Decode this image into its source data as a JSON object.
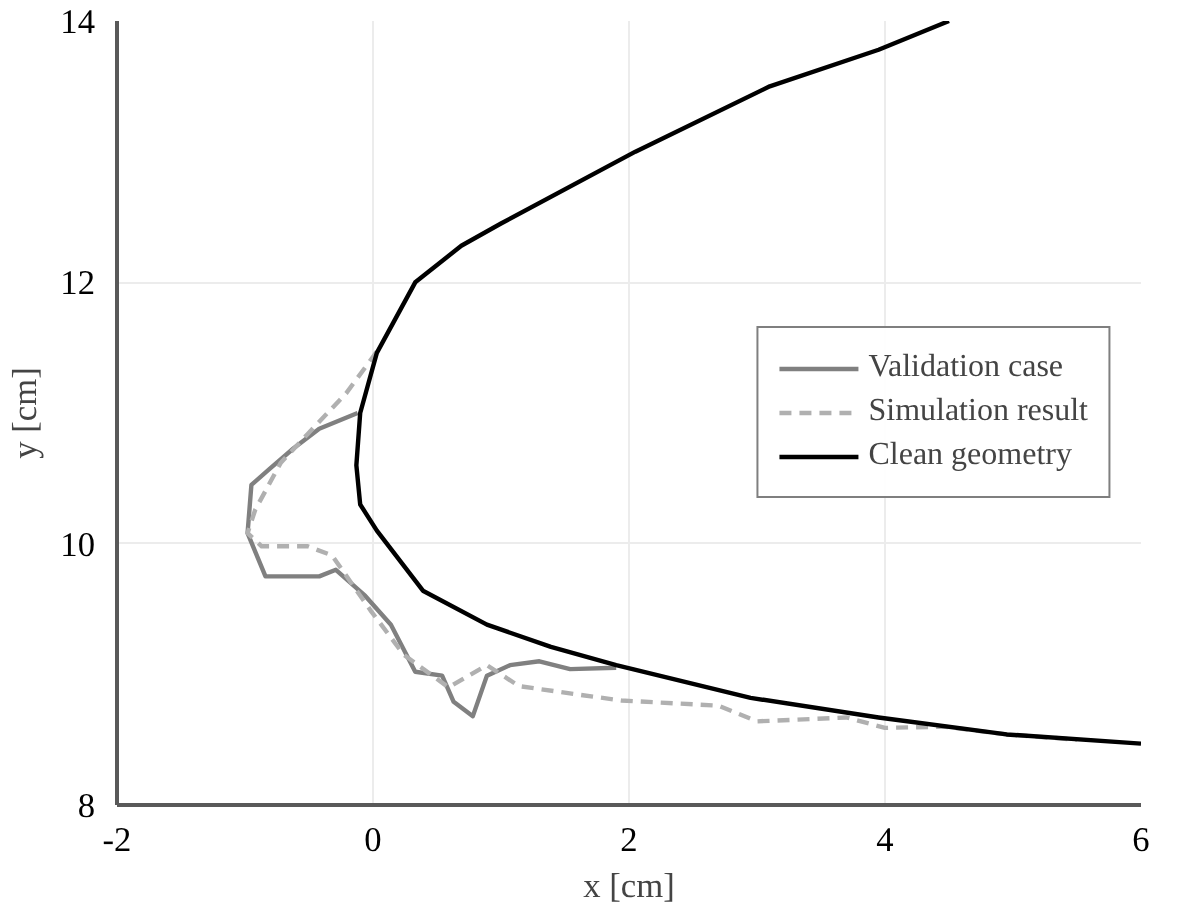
{
  "chart_data": {
    "type": "line",
    "xlabel": "x [cm]",
    "ylabel": "y [cm]",
    "xlim": [
      -2,
      6
    ],
    "ylim": [
      8,
      14
    ],
    "xticks": [
      -2,
      0,
      2,
      4,
      6
    ],
    "yticks": [
      8,
      10,
      12,
      14
    ],
    "grid": true,
    "legend": "right",
    "marker": "none",
    "series": [
      {
        "name": "Validation case",
        "color": "#808080",
        "line_style": "solid",
        "x": [
          -0.12,
          -0.42,
          -0.62,
          -0.81,
          -0.95,
          -0.98,
          -0.84,
          -0.42,
          -0.29,
          -0.06,
          0.14,
          0.33,
          0.54,
          0.63,
          0.78,
          0.89,
          1.07,
          1.3,
          1.54,
          1.9
        ],
        "values": [
          11.0,
          10.88,
          10.73,
          10.57,
          10.45,
          10.08,
          9.75,
          9.75,
          9.8,
          9.6,
          9.38,
          9.02,
          8.99,
          8.79,
          8.68,
          8.99,
          9.07,
          9.1,
          9.04,
          9.05
        ]
      },
      {
        "name": "Simulation result",
        "color": "#b0b0b0",
        "line_style": "dashed",
        "x": [
          0.03,
          -0.21,
          -0.51,
          -0.72,
          -0.92,
          -0.98,
          -0.87,
          -0.51,
          -0.32,
          -0.02,
          0.24,
          0.59,
          0.89,
          1.14,
          1.64,
          1.94,
          2.7,
          3.0,
          3.7,
          4.0,
          4.46,
          4.95,
          5.5
        ],
        "values": [
          11.47,
          11.15,
          10.84,
          10.62,
          10.26,
          10.08,
          9.98,
          9.98,
          9.91,
          9.49,
          9.15,
          8.9,
          9.07,
          8.91,
          8.84,
          8.8,
          8.76,
          8.64,
          8.67,
          8.59,
          8.6,
          8.54,
          8.5
        ]
      },
      {
        "name": "Clean geometry",
        "color": "#000000",
        "line_style": "solid",
        "x": [
          4.5,
          3.95,
          3.1,
          2.05,
          1.0,
          0.69,
          0.33,
          0.03,
          -0.1,
          -0.13,
          -0.1,
          0.03,
          0.39,
          0.89,
          1.39,
          1.9,
          2.95,
          3.95,
          4.95,
          6.0
        ],
        "values": [
          14.0,
          13.78,
          13.5,
          13.0,
          12.45,
          12.28,
          12.0,
          11.46,
          11.0,
          10.6,
          10.3,
          10.1,
          9.64,
          9.38,
          9.21,
          9.07,
          8.82,
          8.67,
          8.54,
          8.47
        ]
      }
    ]
  }
}
